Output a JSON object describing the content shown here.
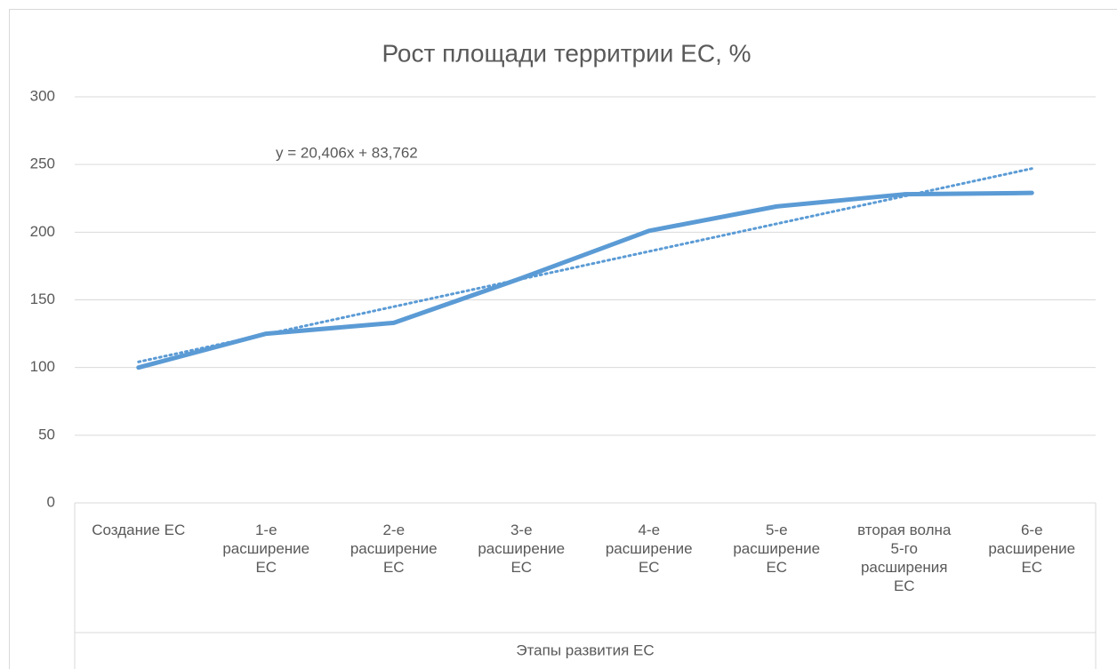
{
  "chart_data": {
    "type": "line",
    "title": "Рост площади территрии ЕС, %",
    "x_label": "Этапы развития ЕС",
    "categories": [
      "Создание ЕС",
      "1-е\nрасширение\nЕС",
      "2-е\nрасширение\nЕС",
      "3-е\nрасширение\nЕС",
      "4-е\nрасширение\nЕС",
      "5-е\nрасширение\nЕС",
      "вторая волна\n5-го\nрасширения\nЕС",
      "6-е\nрасширение\nЕС"
    ],
    "values": [
      100,
      125,
      133,
      166,
      201,
      219,
      228,
      229
    ],
    "color": "#5b9bd5",
    "trendline": {
      "label": "y = 20,406x + 83,762",
      "slope": 20.406,
      "intercept": 83.762
    },
    "ylim": [
      0,
      300
    ],
    "yticks": [
      0,
      50,
      100,
      150,
      200,
      250,
      300
    ],
    "grid": true
  }
}
